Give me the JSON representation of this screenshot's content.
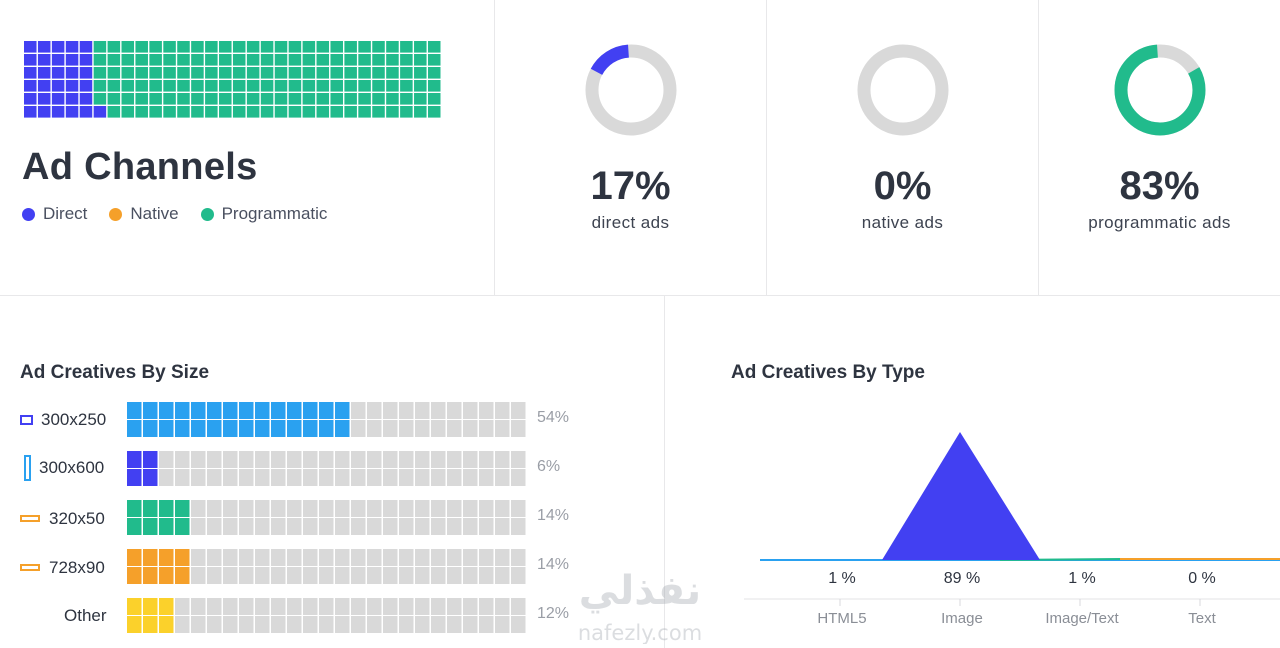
{
  "ad_channels": {
    "title": "Ad Channels",
    "legend": [
      {
        "label": "Direct",
        "color": "#4240f2"
      },
      {
        "label": "Native",
        "color": "#f5a02a"
      },
      {
        "label": "Programmatic",
        "color": "#21bb8c"
      }
    ]
  },
  "kpis": [
    {
      "value": "17%",
      "label": "direct ads",
      "fraction": 0.17,
      "color": "#4240f2"
    },
    {
      "value": "0%",
      "label": "native ads",
      "fraction": 0.0,
      "color": "#f5a02a"
    },
    {
      "value": "83%",
      "label": "programmatic ads",
      "fraction": 0.83,
      "color": "#21bb8c"
    }
  ],
  "sizes": {
    "title": "Ad Creatives By Size",
    "rows": [
      {
        "label": "300x250",
        "pct": "54%",
        "value": 54,
        "color": "#2aa1f0",
        "icon": "rectangle-icon"
      },
      {
        "label": "300x600",
        "pct": "6%",
        "value": 6,
        "color": "#4240f2",
        "icon": "tall-rectangle-icon"
      },
      {
        "label": "320x50",
        "pct": "14%",
        "value": 14,
        "color": "#21bb8c",
        "icon": "banner-icon"
      },
      {
        "label": "728x90",
        "pct": "14%",
        "value": 14,
        "color": "#f5a02a",
        "icon": "leaderboard-icon"
      },
      {
        "label": "Other",
        "pct": "12%",
        "value": 12,
        "color": "#fbd12b",
        "icon": ""
      }
    ]
  },
  "types": {
    "title": "Ad Creatives By Type"
  },
  "chart_data": [
    {
      "type": "bar",
      "title": "Ad Creatives By Size",
      "categories": [
        "300x250",
        "300x600",
        "320x50",
        "728x90",
        "Other"
      ],
      "values": [
        54,
        6,
        14,
        14,
        12
      ],
      "ylim": [
        0,
        100
      ]
    },
    {
      "type": "area",
      "title": "Ad Creatives By Type",
      "categories": [
        "HTML5",
        "Image",
        "Image/Text",
        "Text"
      ],
      "values": [
        1,
        89,
        1,
        0
      ],
      "value_labels": [
        "1 %",
        "89 %",
        "1 %",
        "0 %"
      ],
      "ylim": [
        0,
        100
      ]
    }
  ],
  "watermark": {
    "text_ar": "نفذلي",
    "text_en": "nafezly.com"
  }
}
